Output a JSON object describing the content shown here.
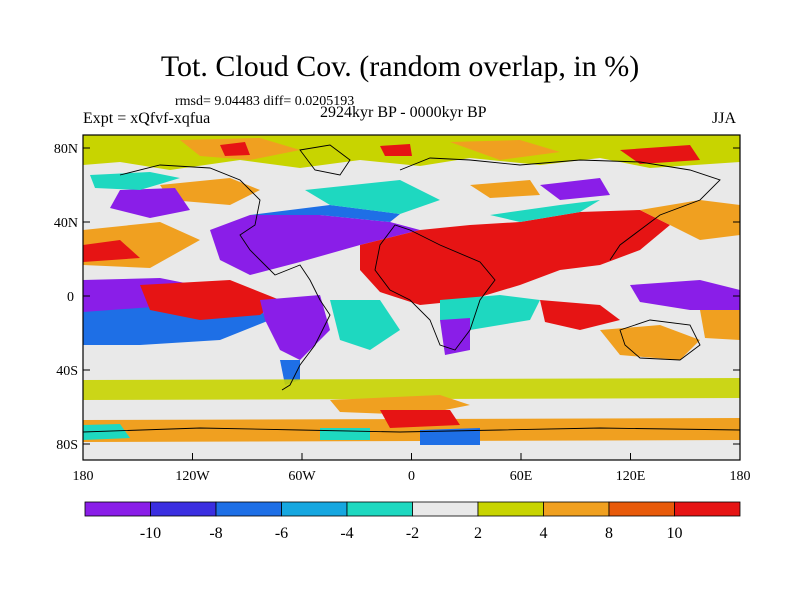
{
  "title": "Tot. Cloud Cov. (random overlap, in %)",
  "stats": "rmsd= 9.04483 diff= 0.0205193",
  "experiment": "Expt = xQfvf-xqfua",
  "period": "2924kyr BP - 0000kyr BP",
  "season": "JJA",
  "lat_ticks": [
    "80N",
    "40N",
    "0",
    "40S",
    "80S"
  ],
  "lon_ticks": [
    "180",
    "120W",
    "60W",
    "0",
    "60E",
    "120E",
    "180"
  ],
  "colorbar": {
    "labels": [
      "-10",
      "-8",
      "-6",
      "-4",
      "-2",
      "2",
      "4",
      "8",
      "10"
    ],
    "colors": [
      "#8a1ee8",
      "#3b2ee0",
      "#1e6fe6",
      "#16a7e0",
      "#1ed8c0",
      "#e9e9e9",
      "#c8d400",
      "#f0a020",
      "#e85a0a",
      "#e61414"
    ]
  },
  "palette": {
    "background_field": "#e9e9e9",
    "neutral": "#e9e9e9",
    "strong_negative": "#8a1ee8",
    "negative": "#1e6fe6",
    "weak_negative": "#1ed8c0",
    "weak_positive": "#c8d400",
    "positive": "#f0a020",
    "strong_positive": "#e61414"
  }
}
